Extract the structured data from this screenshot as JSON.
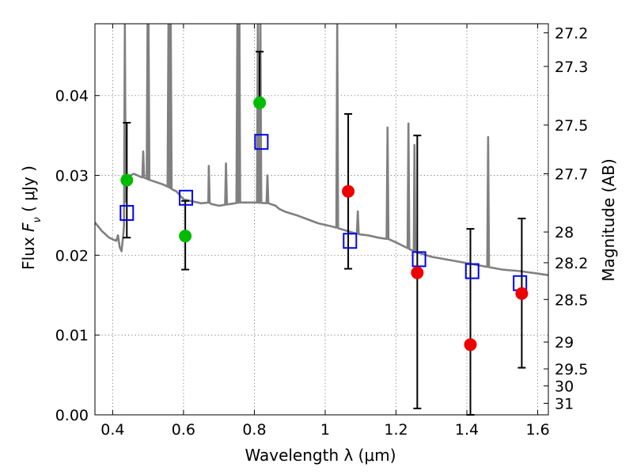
{
  "chart_data": {
    "type": "scatter",
    "xlabel": "Wavelength  λ (μm)",
    "ylabel": "Flux  F_ν  ( μJy )",
    "ylabel_parts": {
      "prefix": "Flux  ",
      "var": "F",
      "sub": "ν",
      "suffix": "  ( μJy )"
    },
    "y2label": "Magnitude (AB)",
    "xlim": [
      0.35,
      1.63
    ],
    "ylim": [
      0.0,
      0.049
    ],
    "grid": true,
    "x_ticks": [
      0.4,
      0.6,
      0.8,
      1.0,
      1.2,
      1.4,
      1.6
    ],
    "x_tick_labels": [
      "0.4",
      "0.6",
      "0.8",
      "1",
      "1.2",
      "1.4",
      "1.6"
    ],
    "y_ticks": [
      0.0,
      0.01,
      0.02,
      0.03,
      0.04
    ],
    "y_tick_labels": [
      "0.00",
      "0.01",
      "0.02",
      "0.03",
      "0.04"
    ],
    "y2_ticks": [
      "27.2",
      "27.3",
      "27.5",
      "27.7",
      "28",
      "28.2",
      "28.5",
      "29",
      "29.5",
      "30",
      "31"
    ],
    "colors": {
      "model": "#808080",
      "model_photometry": "#0000ee",
      "green_points": "#00bb00",
      "red_points": "#ee0000",
      "errorbars": "#000000"
    },
    "series": [
      {
        "style": "line",
        "color": "#808080",
        "points": [
          [
            0.35,
            0.0241
          ],
          [
            0.37,
            0.023
          ],
          [
            0.39,
            0.0222
          ],
          [
            0.41,
            0.0218
          ],
          [
            0.415,
            0.0225
          ],
          [
            0.42,
            0.021
          ],
          [
            0.425,
            0.0205
          ],
          [
            0.43,
            0.0225
          ],
          [
            0.44,
            0.0285
          ],
          [
            0.445,
            0.0295
          ],
          [
            0.45,
            0.03
          ],
          [
            0.46,
            0.0302
          ],
          [
            0.47,
            0.03
          ],
          [
            0.48,
            0.0298
          ],
          [
            0.49,
            0.0297
          ],
          [
            0.5,
            0.0295
          ],
          [
            0.52,
            0.0292
          ],
          [
            0.54,
            0.0289
          ],
          [
            0.56,
            0.0285
          ],
          [
            0.57,
            0.0282
          ],
          [
            0.58,
            0.028
          ],
          [
            0.6,
            0.027
          ],
          [
            0.62,
            0.0268
          ],
          [
            0.65,
            0.0265
          ],
          [
            0.67,
            0.0266
          ],
          [
            0.68,
            0.0264
          ],
          [
            0.7,
            0.0262
          ],
          [
            0.73,
            0.0264
          ],
          [
            0.76,
            0.0266
          ],
          [
            0.8,
            0.0266
          ],
          [
            0.84,
            0.0265
          ],
          [
            0.86,
            0.0262
          ],
          [
            0.87,
            0.0258
          ],
          [
            0.89,
            0.0254
          ],
          [
            0.92,
            0.025
          ],
          [
            0.95,
            0.0245
          ],
          [
            0.98,
            0.024
          ],
          [
            1.0,
            0.0238
          ],
          [
            1.02,
            0.0236
          ],
          [
            1.05,
            0.0232
          ],
          [
            1.08,
            0.0228
          ],
          [
            1.1,
            0.0226
          ],
          [
            1.12,
            0.0225
          ],
          [
            1.15,
            0.0222
          ],
          [
            1.18,
            0.022
          ],
          [
            1.2,
            0.0216
          ],
          [
            1.25,
            0.0205
          ],
          [
            1.3,
            0.0198
          ],
          [
            1.35,
            0.0194
          ],
          [
            1.4,
            0.019
          ],
          [
            1.45,
            0.0186
          ],
          [
            1.5,
            0.0182
          ],
          [
            1.55,
            0.018
          ],
          [
            1.6,
            0.0177
          ],
          [
            1.63,
            0.0175
          ]
        ],
        "emission_lines": [
          [
            0.4345,
            0.049
          ],
          [
            0.4863,
            0.033
          ],
          [
            0.4985,
            0.049
          ],
          [
            0.5012,
            0.049
          ],
          [
            0.5575,
            0.049
          ],
          [
            0.561,
            0.049
          ],
          [
            0.564,
            0.049
          ],
          [
            0.6715,
            0.0312
          ],
          [
            0.72,
            0.0315
          ],
          [
            0.752,
            0.049
          ],
          [
            0.758,
            0.049
          ],
          [
            0.81,
            0.049
          ],
          [
            0.817,
            0.049
          ],
          [
            0.837,
            0.03
          ],
          [
            1.034,
            0.049
          ],
          [
            1.092,
            0.0255
          ],
          [
            1.176,
            0.036
          ],
          [
            1.235,
            0.0365
          ],
          [
            1.252,
            0.0338
          ],
          [
            1.46,
            0.0348
          ]
        ]
      },
      {
        "style": "open-square",
        "color": "#0000ee",
        "x": [
          0.44,
          0.607,
          0.82,
          1.07,
          1.265,
          1.415,
          1.55
        ],
        "y": [
          0.0253,
          0.0272,
          0.0342,
          0.0218,
          0.0195,
          0.018,
          0.0165
        ]
      },
      {
        "style": "filled-circle",
        "color": "#00bb00",
        "x": [
          0.44,
          0.605,
          0.815
        ],
        "y": [
          0.0294,
          0.0224,
          0.0391
        ],
        "err_low": [
          0.0072,
          0.0042,
          null
        ],
        "err_high": [
          0.0072,
          0.0044,
          0.0064
        ]
      },
      {
        "style": "filled-circle",
        "color": "#ee0000",
        "x": [
          1.065,
          1.26,
          1.41,
          1.555
        ],
        "y": [
          0.028,
          0.0178,
          0.0088,
          0.0152
        ],
        "err_low": [
          0.0097,
          0.017,
          0.0088,
          0.0093
        ],
        "err_high": [
          0.0097,
          0.0172,
          0.0145,
          0.0094
        ]
      }
    ]
  }
}
